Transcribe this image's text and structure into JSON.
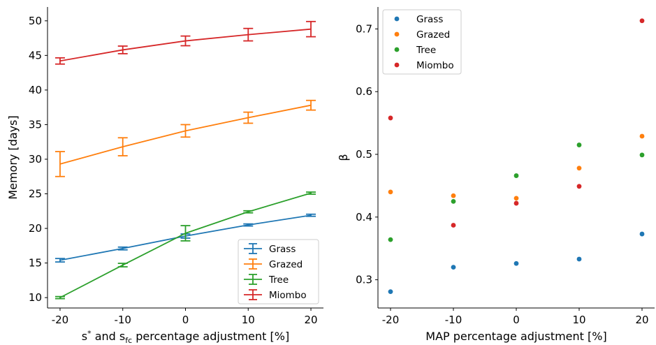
{
  "chart_data": [
    {
      "type": "line",
      "title": "",
      "xlabel": {
        "main": "s",
        "sup": "*",
        "mid": " and s",
        "sub": "fc",
        "tail": " percentage adjustment [%]"
      },
      "ylabel": "Memory [days]",
      "x": [
        -20,
        -10,
        0,
        10,
        20
      ],
      "xticklabels": [
        "-20",
        "-10",
        "0",
        "10",
        "20"
      ],
      "yticks": [
        10,
        15,
        20,
        25,
        30,
        35,
        40,
        45,
        50
      ],
      "yticklabels": [
        "10",
        "15",
        "20",
        "25",
        "30",
        "35",
        "40",
        "45",
        "50"
      ],
      "xlim": [
        -22,
        22
      ],
      "ylim": [
        8.5,
        52
      ],
      "error_bars": true,
      "legend_position": "lower-right",
      "series": [
        {
          "name": "Grass",
          "color": "#1f77b4",
          "values": [
            15.4,
            17.1,
            18.9,
            20.5,
            21.9
          ],
          "errors": [
            0.25,
            0.2,
            0.3,
            0.15,
            0.15
          ]
        },
        {
          "name": "Grazed",
          "color": "#ff7f0e",
          "values": [
            29.3,
            31.8,
            34.1,
            36.0,
            37.8
          ],
          "errors": [
            1.8,
            1.3,
            0.9,
            0.8,
            0.7
          ]
        },
        {
          "name": "Tree",
          "color": "#2ca02c",
          "values": [
            10.0,
            14.7,
            19.3,
            22.4,
            25.1
          ],
          "errors": [
            0.15,
            0.25,
            1.1,
            0.15,
            0.15
          ]
        },
        {
          "name": "Miombo",
          "color": "#d62728",
          "values": [
            44.2,
            45.8,
            47.1,
            48.0,
            48.8
          ],
          "errors": [
            0.45,
            0.55,
            0.7,
            0.9,
            1.1
          ]
        }
      ]
    },
    {
      "type": "scatter",
      "title": "",
      "xlabel": "MAP percentage adjustment [%]",
      "ylabel": "β",
      "x": [
        -20,
        -10,
        0,
        10,
        20
      ],
      "xticklabels": [
        "-20",
        "-10",
        "0",
        "10",
        "20"
      ],
      "yticks": [
        0.3,
        0.4,
        0.5,
        0.6,
        0.7
      ],
      "yticklabels": [
        "0.3",
        "0.4",
        "0.5",
        "0.6",
        "0.7"
      ],
      "xlim": [
        -22,
        22
      ],
      "ylim": [
        0.255,
        0.735
      ],
      "legend_position": "upper-left",
      "series": [
        {
          "name": "Grass",
          "color": "#1f77b4",
          "values": [
            0.281,
            0.32,
            0.326,
            0.333,
            0.373
          ]
        },
        {
          "name": "Grazed",
          "color": "#ff7f0e",
          "values": [
            0.44,
            0.434,
            0.43,
            0.478,
            0.529
          ]
        },
        {
          "name": "Tree",
          "color": "#2ca02c",
          "values": [
            0.364,
            0.425,
            0.466,
            0.515,
            0.499
          ]
        },
        {
          "name": "Miombo",
          "color": "#d62728",
          "values": [
            0.558,
            0.387,
            0.422,
            0.449,
            0.713
          ]
        }
      ]
    }
  ]
}
